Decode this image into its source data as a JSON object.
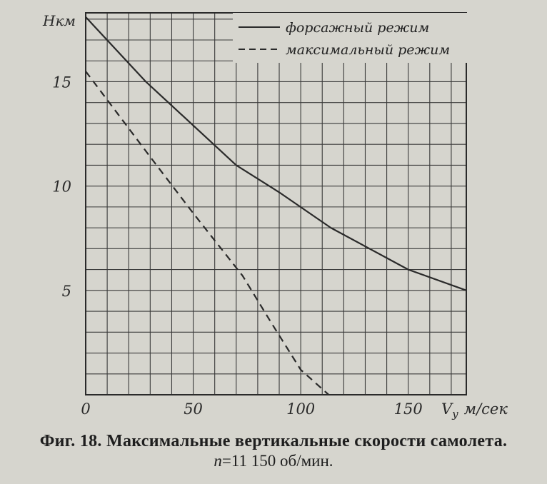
{
  "chart_data": {
    "type": "line",
    "x_axis_label": "V",
    "x_axis_subscript": "y",
    "x_unit": "м/сек",
    "y_axis_label": "Hкм",
    "xlim": [
      0,
      177
    ],
    "ylim": [
      0,
      18.3
    ],
    "x_ticks": [
      {
        "value": 0,
        "label": "0"
      },
      {
        "value": 50,
        "label": "50"
      },
      {
        "value": 100,
        "label": "100"
      },
      {
        "value": 150,
        "label": "150"
      }
    ],
    "y_ticks": [
      {
        "value": 5,
        "label": "5"
      },
      {
        "value": 10,
        "label": "10"
      },
      {
        "value": 15,
        "label": "15"
      }
    ],
    "grid": true,
    "grid_step_x": 10,
    "grid_step_y": 1,
    "legend_position": "top-right",
    "series": [
      {
        "name": "форсажный режим",
        "style": "solid",
        "points": [
          [
            0,
            18.1
          ],
          [
            28,
            15
          ],
          [
            70,
            11
          ],
          [
            90,
            9.7
          ],
          [
            114,
            8
          ],
          [
            150,
            6
          ],
          [
            177,
            5
          ]
        ]
      },
      {
        "name": "максимальный режим",
        "style": "dashed",
        "points": [
          [
            0,
            15.5
          ],
          [
            30,
            11.4
          ],
          [
            50,
            8.7
          ],
          [
            73,
            5.7
          ],
          [
            86,
            3.5
          ],
          [
            100,
            1.2
          ],
          [
            113,
            0
          ]
        ]
      }
    ]
  },
  "caption": {
    "line1": "Фиг. 18. Максимальные вертикальные скорости самолета.",
    "line2_var": "n",
    "line2_rest": "=11 150  об/мин."
  },
  "colors": {
    "paper": "#d6d5ce",
    "ink": "#2a2a2a"
  }
}
